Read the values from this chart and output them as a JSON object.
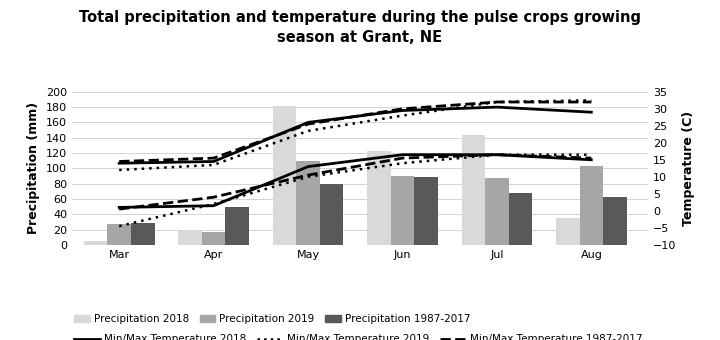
{
  "title": "Total precipitation and temperature during the pulse crops growing\nseason at Grant, NE",
  "ylabel_left": "Precipitation (mm)",
  "ylabel_right": "Temperature (C)",
  "months": [
    "Mar",
    "Apr",
    "May",
    "Jun",
    "Jul",
    "Aug"
  ],
  "month_positions": [
    0,
    1,
    2,
    3,
    4,
    5
  ],
  "bar_width": 0.25,
  "precip_2018": [
    5.0,
    20.0,
    182.0,
    122.0,
    143.0,
    35.0
  ],
  "precip_2019": [
    27.0,
    17.0,
    110.0,
    90.0,
    87.0,
    103.0
  ],
  "precip_1987_2017": [
    28.0,
    50.0,
    80.0,
    88.0,
    68.0,
    62.0
  ],
  "temp_max_2018": [
    14.0,
    14.5,
    26.0,
    29.5,
    30.5,
    29.0
  ],
  "temp_max_2019": [
    12.0,
    13.5,
    23.5,
    28.0,
    32.0,
    32.5
  ],
  "temp_max_1987_2017": [
    14.5,
    15.5,
    25.5,
    30.0,
    32.0,
    32.0
  ],
  "temp_min_2018": [
    1.0,
    1.5,
    13.0,
    16.5,
    16.5,
    15.0
  ],
  "temp_min_2019": [
    -4.5,
    2.0,
    10.0,
    14.0,
    16.5,
    16.5
  ],
  "temp_min_1987_2017": [
    0.5,
    4.0,
    10.5,
    15.5,
    16.5,
    15.5
  ],
  "ylim_left": [
    0.0,
    200.0
  ],
  "ylim_right": [
    -10,
    35
  ],
  "yticks_left": [
    0.0,
    20.0,
    40.0,
    60.0,
    80.0,
    100.0,
    120.0,
    140.0,
    160.0,
    180.0,
    200.0
  ],
  "yticks_right": [
    -10,
    -5,
    0,
    5,
    10,
    15,
    20,
    25,
    30,
    35
  ],
  "color_2018_bar": "#d9d9d9",
  "color_2019_bar": "#a6a6a6",
  "color_1987_2017_bar": "#595959",
  "color_line": "#000000",
  "title_fontsize": 10.5,
  "axis_label_fontsize": 9,
  "tick_fontsize": 8,
  "legend_fontsize": 7.5
}
